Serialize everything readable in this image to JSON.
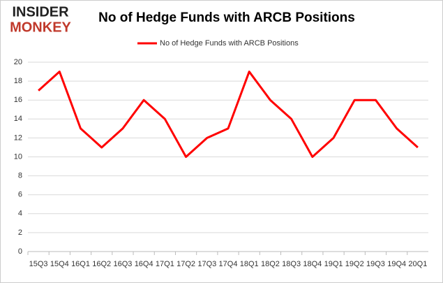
{
  "logo": {
    "top": "INSIDER",
    "bottom": "MONKEY"
  },
  "chart_data": {
    "type": "line",
    "title": "No of Hedge Funds with ARCB Positions",
    "categories": [
      "15Q3",
      "15Q4",
      "16Q1",
      "16Q2",
      "16Q3",
      "16Q4",
      "17Q1",
      "17Q2",
      "17Q3",
      "17Q4",
      "18Q1",
      "18Q2",
      "18Q3",
      "18Q4",
      "19Q1",
      "19Q2",
      "19Q3",
      "19Q4",
      "20Q1"
    ],
    "series": [
      {
        "name": "No of Hedge Funds with ARCB Positions",
        "color": "#ff0000",
        "values": [
          17,
          19,
          13,
          11,
          13,
          16,
          14,
          10,
          12,
          13,
          19,
          16,
          14,
          10,
          12,
          16,
          16,
          13,
          11
        ]
      }
    ],
    "ylim": [
      0,
      20
    ],
    "yticks": [
      0,
      2,
      4,
      6,
      8,
      10,
      12,
      14,
      16,
      18,
      20
    ],
    "grid": true,
    "legend": "top"
  }
}
